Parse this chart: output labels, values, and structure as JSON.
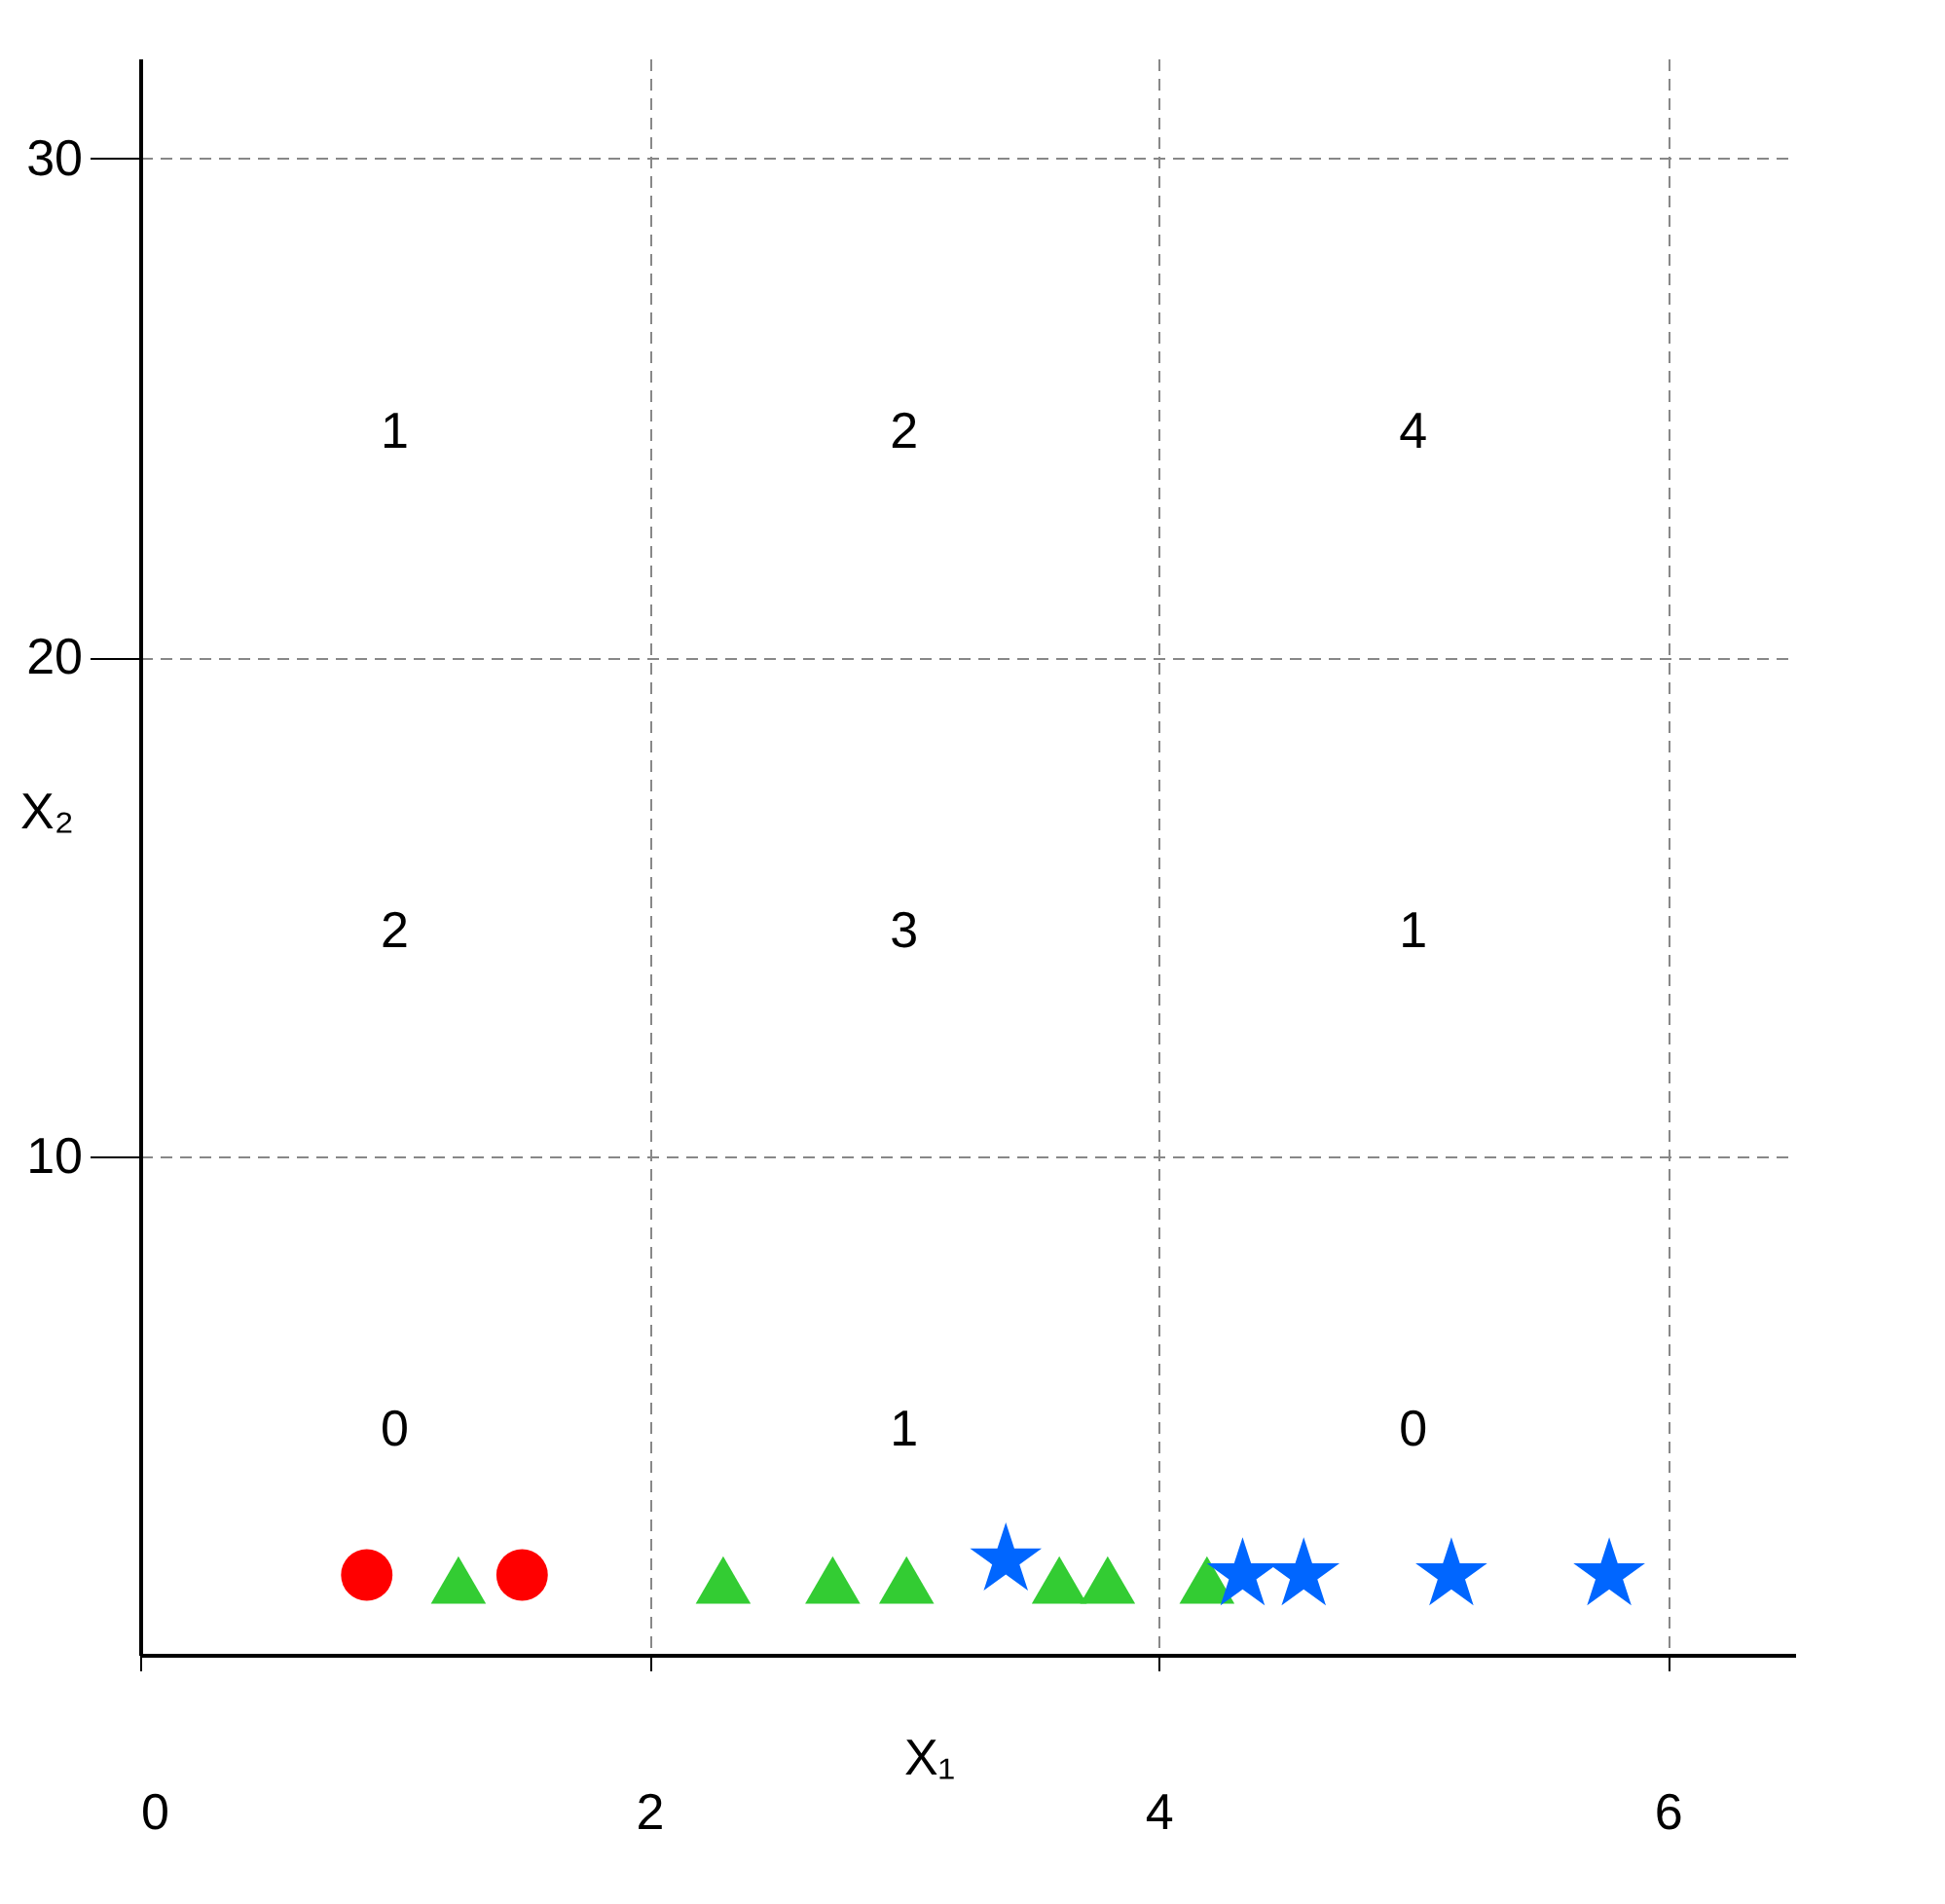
{
  "chart_data": {
    "type": "scatter",
    "xlabel": "X₁",
    "ylabel": "X₂",
    "xlim": [
      0,
      6.5
    ],
    "ylim": [
      0,
      32
    ],
    "xticks": [
      0,
      2,
      4,
      6
    ],
    "yticks": [
      10,
      20,
      30
    ],
    "grid": true,
    "line_style": "dashed",
    "series": [
      {
        "color": "#ff0000",
        "marker": "circle",
        "x": [
          0.89,
          1.5
        ],
        "values": [
          1.6,
          1.6
        ]
      },
      {
        "color": "#33cc33",
        "marker": "triangle",
        "x": [
          1.25,
          2.29,
          2.72,
          3.01,
          3.61,
          3.8,
          4.19
        ],
        "values": [
          1.5,
          1.5,
          1.5,
          1.5,
          1.5,
          1.5,
          1.5
        ]
      },
      {
        "color": "#0066ff",
        "marker": "star",
        "x": [
          3.4,
          4.33,
          4.57,
          5.15,
          5.77
        ],
        "values": [
          1.9,
          1.6,
          1.6,
          1.6,
          1.6
        ]
      }
    ],
    "annotations": [
      "1",
      "2",
      "4",
      "2",
      "3",
      "1",
      "0",
      "1",
      "0"
    ]
  }
}
